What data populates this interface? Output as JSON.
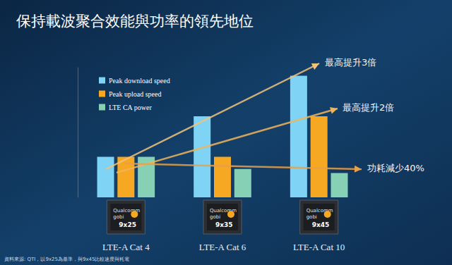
{
  "chart_data": {
    "type": "bar",
    "title": "保持載波聚合效能與功率的領先地位",
    "categories": [
      "LTE-A Cat 4",
      "LTE-A Cat 6",
      "LTE-A Cat 10"
    ],
    "series": [
      {
        "name": "Peak download speed",
        "color": "#7fd3f5",
        "values": [
          1,
          2,
          3
        ]
      },
      {
        "name": "Peak upload speed",
        "color": "#f7a823",
        "values": [
          1,
          1,
          2
        ]
      },
      {
        "name": "LTE CA power",
        "color": "#86d1b6",
        "values": [
          1,
          0.7,
          0.6
        ]
      }
    ],
    "ylim": [
      0,
      3.2
    ],
    "yticks": [],
    "grid": false,
    "legend": "top-left",
    "tick_labels": "x",
    "data_labels": false,
    "annotations": [
      "最高提升3倍",
      "最高提升2倍",
      "功耗減少40%"
    ],
    "chip_brand": [
      "Qualcomm",
      "gobi"
    ],
    "chip_labels": [
      "9x25",
      "9x35",
      "9x45"
    ],
    "source_note": "資料來源: QTI，以9x25為基準，與9x45比較速度與耗電"
  }
}
